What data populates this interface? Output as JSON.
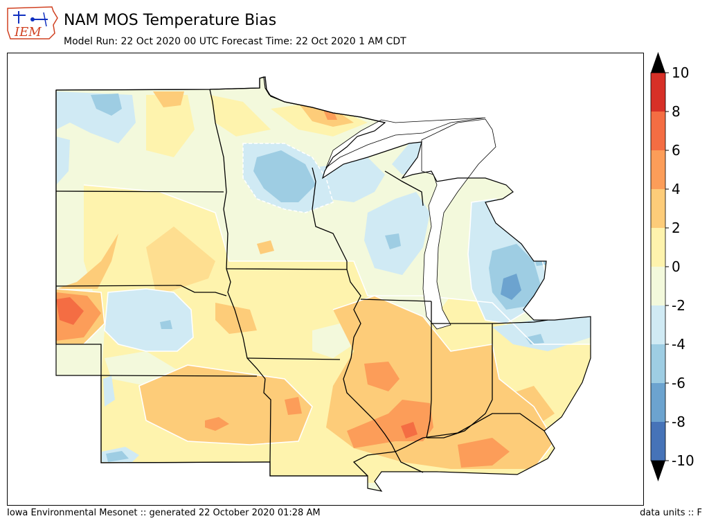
{
  "header": {
    "logo_text": "IEM",
    "title": "NAM MOS Temperature Bias",
    "subtitle": "Model Run: 22 Oct 2020 00 UTC Forecast Time: 22 Oct 2020 1 AM CDT"
  },
  "colorbar": {
    "levels": [
      {
        "label": "10",
        "value": 10
      },
      {
        "label": "8",
        "value": 8
      },
      {
        "label": "6",
        "value": 6
      },
      {
        "label": "4",
        "value": 4
      },
      {
        "label": "2",
        "value": 2
      },
      {
        "label": "0",
        "value": 0
      },
      {
        "label": "-2",
        "value": -2
      },
      {
        "label": "-4",
        "value": -4
      },
      {
        "label": "-6",
        "value": -6
      },
      {
        "label": "-8",
        "value": -8
      },
      {
        "label": "-10",
        "value": -10
      }
    ],
    "bins": [
      {
        "range": "8 to 10",
        "color": "#d73027"
      },
      {
        "range": "6 to 8",
        "color": "#f46d43"
      },
      {
        "range": "4 to 6",
        "color": "#fc9d59"
      },
      {
        "range": "2 to 4",
        "color": "#fdcc79"
      },
      {
        "range": "0 to 2",
        "color": "#fef3ad"
      },
      {
        "range": "-2 to 0",
        "color": "#f3f9dc"
      },
      {
        "range": "-4 to -2",
        "color": "#d0eaf4"
      },
      {
        "range": "-6 to -4",
        "color": "#9ecde3"
      },
      {
        "range": "-8 to -6",
        "color": "#6ca3cf"
      },
      {
        "range": "-10 to -8",
        "color": "#4673b8"
      }
    ],
    "over_color": "#000000",
    "under_color": "#000000"
  },
  "footer": {
    "left": "Iowa Environmental Mesonet :: generated 22 October 2020 01:28 AM",
    "right": "data units :: F"
  }
}
